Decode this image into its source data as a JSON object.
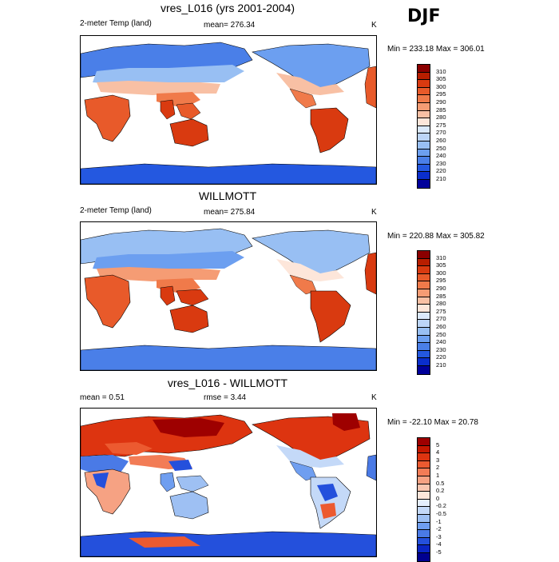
{
  "season": "DJF",
  "panels": [
    {
      "title": "vres_L016 (yrs 2001-2004)",
      "left_label": "2-meter Temp (land)",
      "center_label": "mean= 276.34",
      "right_label": "K",
      "minmax": "Min = 233.18 Max = 306.01",
      "colorbar": {
        "labels": [
          "310",
          "305",
          "300",
          "295",
          "290",
          "285",
          "280",
          "275",
          "270",
          "260",
          "250",
          "240",
          "230",
          "220",
          "210"
        ],
        "colors": [
          "#8b0000",
          "#b81e00",
          "#d93a10",
          "#e85a2a",
          "#f07a4a",
          "#f59c74",
          "#f8c0a4",
          "#fde6da",
          "#dbe9fb",
          "#bcd5f7",
          "#98bff3",
          "#6c9ff0",
          "#4a7fe8",
          "#2458e0",
          "#0a2ecc",
          "#00009a"
        ]
      }
    },
    {
      "title": "WILLMOTT",
      "left_label": "2-meter Temp (land)",
      "center_label": "mean= 275.84",
      "right_label": "K",
      "minmax": "Min = 220.88 Max = 305.82",
      "colorbar": {
        "labels": [
          "310",
          "305",
          "300",
          "295",
          "290",
          "285",
          "280",
          "275",
          "270",
          "260",
          "250",
          "240",
          "230",
          "220",
          "210"
        ],
        "colors": [
          "#8b0000",
          "#b81e00",
          "#d93a10",
          "#e85a2a",
          "#f07a4a",
          "#f59c74",
          "#f8c0a4",
          "#fde6da",
          "#dbe9fb",
          "#bcd5f7",
          "#98bff3",
          "#6c9ff0",
          "#4a7fe8",
          "#2458e0",
          "#0a2ecc",
          "#00009a"
        ]
      }
    },
    {
      "title": "vres_L016 - WILLMOTT",
      "left_label": "mean =   0.51",
      "center_label": "rmse =    3.44",
      "right_label": "K",
      "minmax": "Min = -22.10 Max =  20.78",
      "colorbar": {
        "labels": [
          "5",
          "4",
          "3",
          "2",
          "1",
          "0.5",
          "0.2",
          "0",
          "-0.2",
          "-0.5",
          "-1",
          "-2",
          "-3",
          "-4",
          "-5"
        ],
        "colors": [
          "#9e0000",
          "#c41800",
          "#dd3410",
          "#ec5a30",
          "#f27c56",
          "#f6a283",
          "#fac6b0",
          "#fde6da",
          "#e4eefc",
          "#c4d9f8",
          "#9ec0f3",
          "#6f9ef0",
          "#4a7ae6",
          "#2450dc",
          "#0a25c4",
          "#000090"
        ]
      }
    }
  ]
}
